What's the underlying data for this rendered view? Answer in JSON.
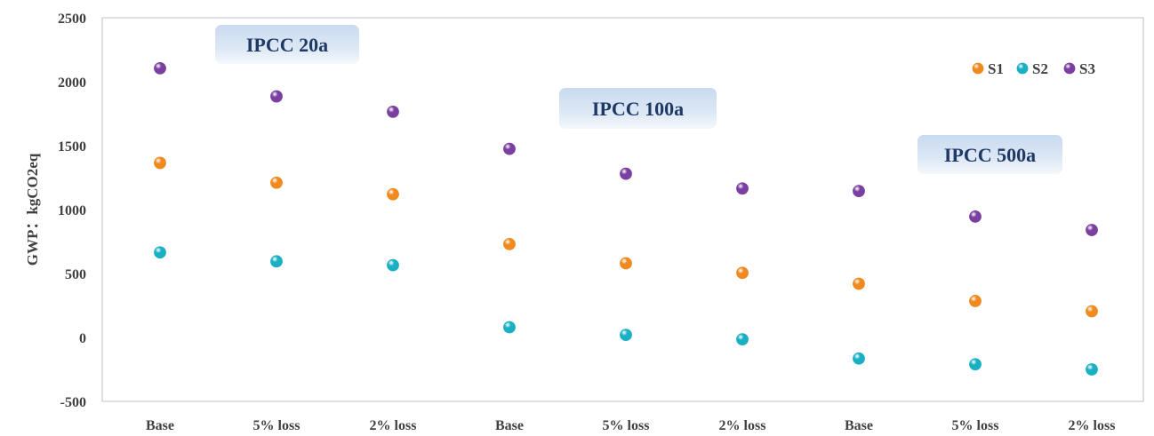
{
  "chart_data": {
    "type": "scatter",
    "title": "",
    "xlabel": "",
    "ylabel": "GWP：kgCO2eq",
    "ylim": [
      -500,
      2500
    ],
    "yticks": [
      -500,
      0,
      500,
      1000,
      1500,
      2000,
      2500
    ],
    "categories": [
      "Base",
      "5% loss",
      "2% loss",
      "Base",
      "5% loss",
      "2% loss",
      "Base",
      "5% loss",
      "2% loss"
    ],
    "series": [
      {
        "name": "S1",
        "color": "#f08a1e",
        "values": [
          1365,
          1210,
          1120,
          730,
          580,
          505,
          420,
          285,
          205
        ]
      },
      {
        "name": "S2",
        "color": "#1ab0c4",
        "values": [
          665,
          595,
          565,
          80,
          20,
          -15,
          -165,
          -210,
          -250
        ]
      },
      {
        "name": "S3",
        "color": "#7a3fa0",
        "values": [
          2105,
          1885,
          1765,
          1475,
          1280,
          1165,
          1145,
          945,
          840
        ]
      }
    ],
    "legend_position": "top-right",
    "grid": false,
    "annotations": [
      {
        "text": "IPCC 20a",
        "anchor_category": 0
      },
      {
        "text": "IPCC 100a",
        "anchor_category": 3
      },
      {
        "text": "IPCC 500a",
        "anchor_category": 6
      }
    ]
  }
}
